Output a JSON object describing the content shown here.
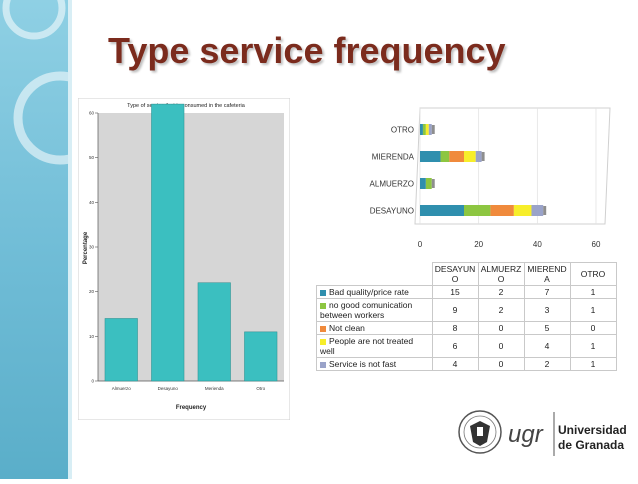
{
  "slide": {
    "title": "Type service frequency"
  },
  "chart_data": [
    {
      "type": "bar",
      "title": "Type of service that is consumed in the cafeteria",
      "xlabel": "Frequency",
      "ylabel": "Percentage",
      "categories": [
        "Almuerzo",
        "Desayuno",
        "Merienda",
        "Otro"
      ],
      "values": [
        14,
        62,
        22,
        11
      ],
      "ylim": [
        0,
        60
      ],
      "yticks": [
        "0",
        "10",
        "20",
        "30",
        "40",
        "50",
        "60"
      ],
      "color": "#3bbfc0"
    },
    {
      "type": "bar",
      "orientation": "horizontal",
      "stacked": true,
      "categories": [
        "DESAYUNO",
        "ALMUERZO",
        "MIERENDA",
        "OTRO"
      ],
      "category_headers": [
        "DESAYUNO",
        "ALMUERZO",
        "MIERENDA",
        "OTRO"
      ],
      "xlim": [
        0,
        60
      ],
      "xticks": [
        "0",
        "20",
        "40",
        "60"
      ],
      "series": [
        {
          "name": "Bad quality/price rate",
          "color": "#2f8fae",
          "values": [
            15,
            2,
            7,
            1
          ]
        },
        {
          "name": "no good comunication between workers",
          "color": "#8dc641",
          "values": [
            9,
            2,
            3,
            1
          ]
        },
        {
          "name": "Not clean",
          "color": "#f08a3c",
          "values": [
            8,
            0,
            5,
            0
          ]
        },
        {
          "name": "People are not treated well",
          "color": "#f7ee2a",
          "values": [
            6,
            0,
            4,
            1
          ]
        },
        {
          "name": "Service is not fast",
          "color": "#9aa3c9",
          "values": [
            4,
            0,
            2,
            1
          ]
        }
      ]
    }
  ],
  "logo": {
    "brand": "ugr",
    "line1": "Universidad",
    "line2": "de Granada"
  }
}
